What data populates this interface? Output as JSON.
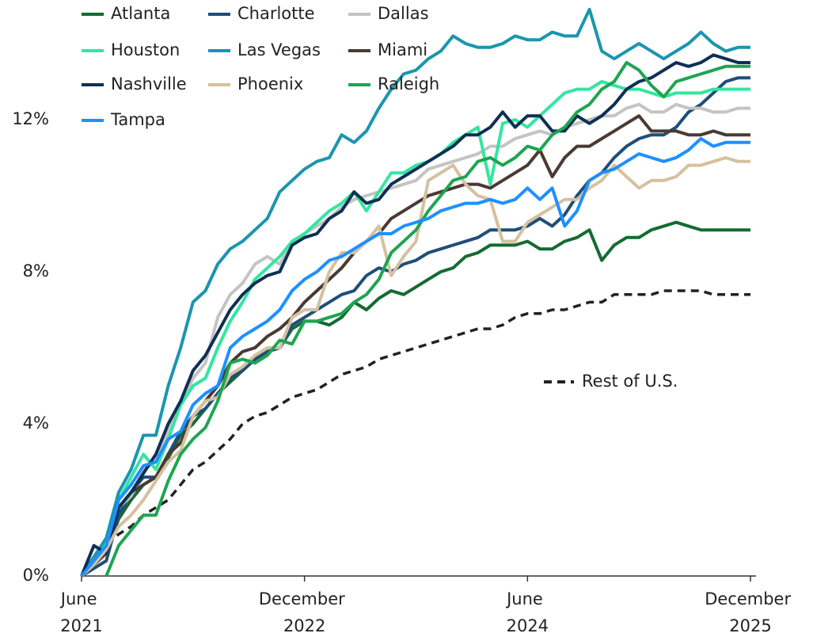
{
  "chart_data": {
    "type": "line",
    "categories": [
      "June 2021",
      null,
      null,
      null,
      null,
      null,
      null,
      null,
      null,
      null,
      null,
      null,
      null,
      null,
      null,
      null,
      null,
      null,
      "December 2022",
      null,
      null,
      null,
      null,
      null,
      null,
      null,
      null,
      null,
      null,
      null,
      null,
      null,
      null,
      null,
      null,
      null,
      "June 2024",
      null,
      null,
      null,
      null,
      null,
      null,
      null,
      null,
      null,
      null,
      null,
      null,
      null,
      null,
      null,
      null,
      null,
      "December 2025"
    ],
    "ylim": [
      0,
      15
    ],
    "yticks": [
      {
        "value": 0,
        "label": "0%"
      },
      {
        "value": 4,
        "label": "4%"
      },
      {
        "value": 8,
        "label": "8%"
      },
      {
        "value": 12,
        "label": "12%"
      }
    ],
    "grid": false,
    "legend": "top-left",
    "series": [
      {
        "name": "Atlanta",
        "color": "#146b32",
        "values": [
          0,
          0.3,
          0.6,
          1.5,
          2.0,
          2.4,
          2.6,
          3.1,
          3.7,
          4.0,
          4.4,
          4.8,
          5.1,
          5.4,
          5.7,
          5.9,
          6.0,
          6.5,
          6.7,
          6.7,
          6.6,
          6.8,
          7.2,
          7.0,
          7.3,
          7.5,
          7.4,
          7.6,
          7.8,
          8.0,
          8.1,
          8.4,
          8.5,
          8.7,
          8.7,
          8.7,
          8.8,
          8.6,
          8.6,
          8.8,
          8.9,
          9.1,
          8.3,
          8.7,
          8.9,
          8.9,
          9.1,
          9.2,
          9.3,
          9.2,
          9.1,
          9.1,
          9.1,
          9.1,
          9.1
        ]
      },
      {
        "name": "Charlotte",
        "color": "#1f4e79",
        "values": [
          0,
          0.2,
          0.4,
          1.6,
          2.2,
          2.6,
          2.6,
          3.2,
          3.8,
          4.2,
          4.4,
          4.8,
          5.2,
          5.4,
          5.7,
          5.9,
          6.0,
          6.6,
          6.8,
          7.0,
          7.2,
          7.4,
          7.5,
          7.9,
          8.1,
          8.0,
          8.2,
          8.3,
          8.5,
          8.6,
          8.7,
          8.8,
          8.9,
          9.1,
          9.1,
          9.1,
          9.2,
          9.4,
          9.2,
          9.5,
          10.0,
          10.4,
          10.6,
          11.0,
          11.3,
          11.5,
          11.6,
          11.6,
          11.8,
          12.2,
          12.4,
          12.7,
          13.0,
          13.1,
          13.1
        ]
      },
      {
        "name": "Dallas",
        "color": "#c4c4c4",
        "values": [
          0,
          0.4,
          0.8,
          1.8,
          2.1,
          2.8,
          3.0,
          3.8,
          4.5,
          5.2,
          5.6,
          6.8,
          7.4,
          7.7,
          8.2,
          8.4,
          8.2,
          8.8,
          9.0,
          9.2,
          9.4,
          9.7,
          9.9,
          10.0,
          10.1,
          10.2,
          10.3,
          10.4,
          10.7,
          10.8,
          10.9,
          11.0,
          11.1,
          11.3,
          11.3,
          11.5,
          11.6,
          11.7,
          11.6,
          11.8,
          11.9,
          12.0,
          12.1,
          12.1,
          12.3,
          12.4,
          12.2,
          12.2,
          12.4,
          12.3,
          12.3,
          12.2,
          12.2,
          12.3,
          12.3
        ]
      },
      {
        "name": "Houston",
        "color": "#33e6a0",
        "values": [
          0,
          0.5,
          0.9,
          2.0,
          2.6,
          3.2,
          2.8,
          3.6,
          4.5,
          5.0,
          5.2,
          6.0,
          6.7,
          7.2,
          7.8,
          8.1,
          8.4,
          8.8,
          9.0,
          9.3,
          9.6,
          9.8,
          10.1,
          9.6,
          10.1,
          10.6,
          10.6,
          10.8,
          10.9,
          11.1,
          11.4,
          11.6,
          11.8,
          10.3,
          11.9,
          12.0,
          11.8,
          12.1,
          12.4,
          12.7,
          12.8,
          12.8,
          13.0,
          12.9,
          12.8,
          12.8,
          12.7,
          12.6,
          12.7,
          12.7,
          12.7,
          12.8,
          12.8,
          12.8,
          12.8
        ]
      },
      {
        "name": "Las Vegas",
        "color": "#1a96ae",
        "values": [
          0,
          0.5,
          1.0,
          2.2,
          2.8,
          3.7,
          3.7,
          5.0,
          6.0,
          7.2,
          7.5,
          8.2,
          8.6,
          8.8,
          9.1,
          9.4,
          10.1,
          10.4,
          10.7,
          10.9,
          11.0,
          11.6,
          11.4,
          11.7,
          12.3,
          12.8,
          13.2,
          13.3,
          13.6,
          13.8,
          14.2,
          14.0,
          13.9,
          13.9,
          14.0,
          14.2,
          14.1,
          14.1,
          14.3,
          14.2,
          14.2,
          14.9,
          13.8,
          13.6,
          13.8,
          14.0,
          13.8,
          13.6,
          13.8,
          14.0,
          14.3,
          14.0,
          13.8,
          13.9,
          13.9
        ]
      },
      {
        "name": "Miami",
        "color": "#4b3a32",
        "values": [
          0,
          0.3,
          0.6,
          1.8,
          2.2,
          2.4,
          2.6,
          3.2,
          3.5,
          4.2,
          4.6,
          5.0,
          5.6,
          5.9,
          6.0,
          6.3,
          6.5,
          6.8,
          7.2,
          7.5,
          7.8,
          8.1,
          8.5,
          8.8,
          9.0,
          9.4,
          9.6,
          9.8,
          10.0,
          10.1,
          10.2,
          10.3,
          10.3,
          10.2,
          10.4,
          10.6,
          10.8,
          11.2,
          10.5,
          11.0,
          11.3,
          11.3,
          11.5,
          11.7,
          11.9,
          12.1,
          11.7,
          11.7,
          11.7,
          11.6,
          11.6,
          11.7,
          11.6,
          11.6,
          11.6
        ]
      },
      {
        "name": "Nashville",
        "color": "#0f2f55",
        "values": [
          0,
          0.8,
          0.6,
          1.8,
          2.2,
          2.7,
          3.2,
          4.0,
          4.6,
          5.4,
          5.8,
          6.4,
          7.0,
          7.4,
          7.7,
          7.9,
          8.0,
          8.7,
          8.9,
          9.0,
          9.4,
          9.6,
          10.1,
          9.8,
          9.9,
          10.3,
          10.5,
          10.7,
          10.9,
          11.1,
          11.3,
          11.6,
          11.6,
          11.8,
          12.2,
          11.8,
          12.1,
          12.1,
          11.7,
          11.7,
          12.1,
          11.9,
          12.1,
          12.4,
          12.8,
          13.0,
          13.1,
          13.3,
          13.5,
          13.4,
          13.5,
          13.7,
          13.6,
          13.5,
          13.5
        ]
      },
      {
        "name": "Phoenix",
        "color": "#d4c19f",
        "values": [
          0,
          0.3,
          0.7,
          1.3,
          1.6,
          2.0,
          2.5,
          3.0,
          3.3,
          4.2,
          4.6,
          4.7,
          5.3,
          5.5,
          5.8,
          6.0,
          6.0,
          6.8,
          7.0,
          7.0,
          8.0,
          8.5,
          8.5,
          8.8,
          9.2,
          7.9,
          8.4,
          8.8,
          10.4,
          10.6,
          10.8,
          10.3,
          10.0,
          9.9,
          8.8,
          8.8,
          9.3,
          9.5,
          9.7,
          9.9,
          9.9,
          10.2,
          10.4,
          10.8,
          10.5,
          10.2,
          10.4,
          10.4,
          10.5,
          10.8,
          10.8,
          10.9,
          11.0,
          10.9,
          10.9
        ]
      },
      {
        "name": "Raleigh",
        "color": "#1ea552",
        "values": [
          null,
          null,
          0,
          0.8,
          1.2,
          1.6,
          1.6,
          2.5,
          3.2,
          3.6,
          3.9,
          4.6,
          5.6,
          5.7,
          5.6,
          5.8,
          6.2,
          6.1,
          6.7,
          6.7,
          6.8,
          6.9,
          7.2,
          7.4,
          7.8,
          8.5,
          8.8,
          9.1,
          9.6,
          10.0,
          10.4,
          10.5,
          10.9,
          11.0,
          10.8,
          11.0,
          11.3,
          11.2,
          11.6,
          11.8,
          12.2,
          12.4,
          12.8,
          13.0,
          13.5,
          13.3,
          12.9,
          12.6,
          13.0,
          13.1,
          13.2,
          13.3,
          13.4,
          13.4,
          13.4
        ]
      },
      {
        "name": "Tampa",
        "color": "#1e90ff",
        "values": [
          0,
          0.4,
          0.8,
          2.0,
          2.4,
          2.9,
          3.0,
          3.6,
          3.8,
          4.5,
          4.8,
          5.0,
          6.0,
          6.3,
          6.5,
          6.7,
          7.0,
          7.5,
          7.8,
          8.0,
          8.3,
          8.4,
          8.6,
          8.8,
          9.0,
          9.0,
          9.2,
          9.3,
          9.4,
          9.6,
          9.7,
          9.8,
          9.8,
          9.9,
          9.8,
          9.9,
          10.2,
          9.9,
          10.2,
          9.2,
          9.6,
          10.4,
          10.6,
          10.7,
          10.9,
          11.1,
          11.0,
          10.9,
          11.0,
          11.2,
          11.5,
          11.3,
          11.4,
          11.4,
          11.4
        ]
      },
      {
        "name": "Rest of U.S.",
        "color": "#222222",
        "dashed": true,
        "values": [
          0,
          0.4,
          0.8,
          1.1,
          1.3,
          1.6,
          1.8,
          2.0,
          2.4,
          2.8,
          3.0,
          3.3,
          3.6,
          4.0,
          4.2,
          4.3,
          4.5,
          4.7,
          4.8,
          4.9,
          5.1,
          5.3,
          5.4,
          5.5,
          5.7,
          5.8,
          5.9,
          6.0,
          6.1,
          6.2,
          6.3,
          6.4,
          6.5,
          6.5,
          6.6,
          6.8,
          6.9,
          6.9,
          7.0,
          7.0,
          7.1,
          7.2,
          7.2,
          7.4,
          7.4,
          7.4,
          7.4,
          7.5,
          7.5,
          7.5,
          7.5,
          7.4,
          7.4,
          7.4,
          7.4
        ]
      }
    ]
  }
}
